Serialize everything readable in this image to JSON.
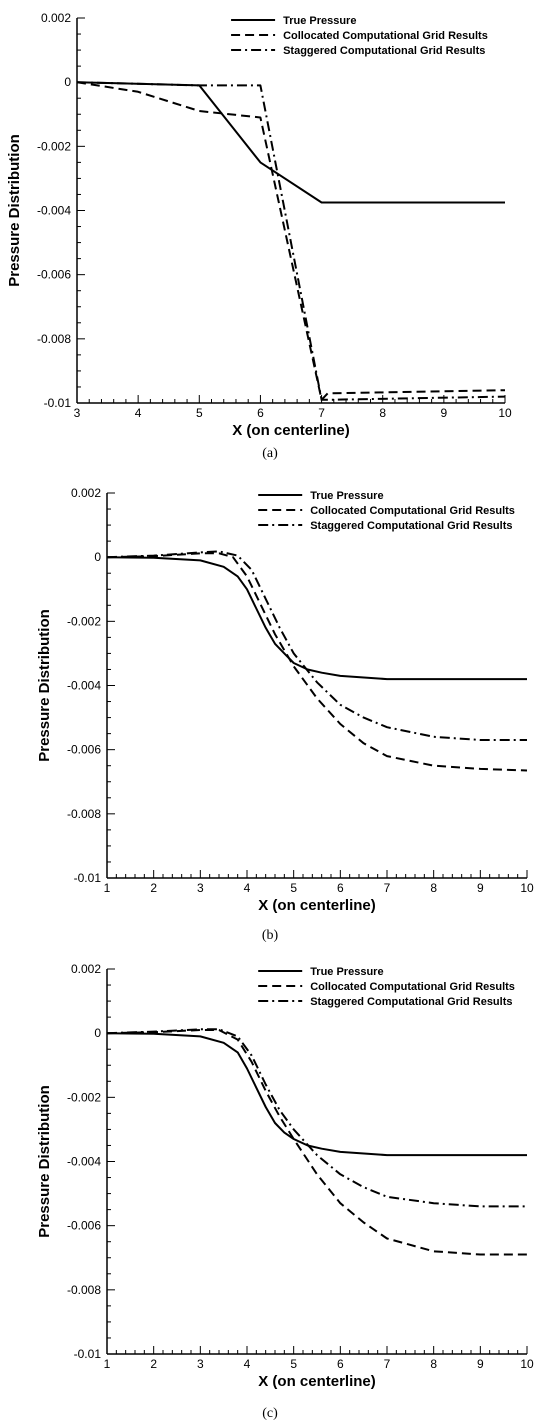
{
  "chart_data": [
    {
      "type": "line",
      "caption": "(a)",
      "xlabel": "X (on centerline)",
      "ylabel": "Pressure Distribution",
      "xlim": [
        3,
        10
      ],
      "ylim": [
        -0.01,
        0.002
      ],
      "xticks": [
        "3",
        "4",
        "5",
        "6",
        "7",
        "8",
        "9",
        "10"
      ],
      "yticks": [
        "0.002",
        "0",
        "-0.002",
        "-0.004",
        "-0.006",
        "-0.008",
        "-0.01"
      ],
      "grid": false,
      "legend": "top-right",
      "series": [
        {
          "name": "True Pressure",
          "style": "solid",
          "x": [
            3,
            5,
            6,
            7,
            10
          ],
          "y": [
            0,
            -0.0001,
            -0.0025,
            -0.00375,
            -0.00375
          ]
        },
        {
          "name": "Collocated Computational Grid Results",
          "style": "dashed",
          "x": [
            3,
            4,
            5,
            6,
            7,
            7.1,
            10
          ],
          "y": [
            0,
            -0.0003,
            -0.0009,
            -0.0011,
            -0.0099,
            -0.0097,
            -0.0096
          ]
        },
        {
          "name": "Staggered Computational Grid Results",
          "style": "dashdot",
          "x": [
            3,
            5,
            6,
            7,
            7.1,
            10
          ],
          "y": [
            0,
            -0.0001,
            -0.0001,
            -0.0099,
            -0.0099,
            -0.0098
          ]
        }
      ]
    },
    {
      "type": "line",
      "caption": "(b)",
      "xlabel": "X (on centerline)",
      "ylabel": "Pressure Distribution",
      "xlim": [
        1,
        10
      ],
      "ylim": [
        -0.01,
        0.002
      ],
      "xticks": [
        "1",
        "2",
        "3",
        "4",
        "5",
        "6",
        "7",
        "8",
        "9",
        "10"
      ],
      "yticks": [
        "0.002",
        "0",
        "-0.002",
        "-0.004",
        "-0.006",
        "-0.008",
        "-0.01"
      ],
      "grid": false,
      "legend": "top-right",
      "series": [
        {
          "name": "True Pressure",
          "style": "solid",
          "x": [
            1,
            2,
            3,
            3.5,
            3.8,
            4,
            4.2,
            4.4,
            4.6,
            4.8,
            5,
            5.3,
            5.6,
            6,
            7,
            8,
            10
          ],
          "y": [
            0,
            -2e-05,
            -0.0001,
            -0.0003,
            -0.0006,
            -0.001,
            -0.0016,
            -0.0022,
            -0.0027,
            -0.003,
            -0.0033,
            -0.0035,
            -0.0036,
            -0.0037,
            -0.0038,
            -0.0038,
            -0.0038
          ]
        },
        {
          "name": "Collocated Computational Grid Results",
          "style": "dashed",
          "x": [
            1,
            2,
            3,
            3.4,
            3.7,
            4,
            4.3,
            4.6,
            5,
            5.5,
            6,
            6.5,
            7,
            8,
            9,
            10
          ],
          "y": [
            0,
            3e-05,
            0.00012,
            0.00012,
            0,
            -0.0006,
            -0.0015,
            -0.0024,
            -0.0034,
            -0.0044,
            -0.0052,
            -0.0058,
            -0.0062,
            -0.0065,
            -0.0066,
            -0.00665
          ]
        },
        {
          "name": "Staggered Computational Grid Results",
          "style": "dashdot",
          "x": [
            1,
            2,
            3,
            3.4,
            3.8,
            4.1,
            4.4,
            4.7,
            5,
            5.5,
            6,
            6.5,
            7,
            8,
            9,
            10
          ],
          "y": [
            0,
            5e-05,
            0.00015,
            0.00018,
            5e-05,
            -0.0004,
            -0.0013,
            -0.0022,
            -0.003,
            -0.0039,
            -0.0046,
            -0.005,
            -0.0053,
            -0.0056,
            -0.0057,
            -0.0057
          ]
        }
      ]
    },
    {
      "type": "line",
      "caption": "(c)",
      "xlabel": "X (on centerline)",
      "ylabel": "Pressure Distribution",
      "xlim": [
        1,
        10
      ],
      "ylim": [
        -0.01,
        0.002
      ],
      "xticks": [
        "1",
        "2",
        "3",
        "4",
        "5",
        "6",
        "7",
        "8",
        "9",
        "10"
      ],
      "yticks": [
        "0.002",
        "0",
        "-0.002",
        "-0.004",
        "-0.006",
        "-0.008",
        "-0.01"
      ],
      "grid": false,
      "legend": "top-right",
      "series": [
        {
          "name": "True Pressure",
          "style": "solid",
          "x": [
            1,
            2,
            3,
            3.5,
            3.8,
            4,
            4.2,
            4.4,
            4.6,
            4.8,
            5,
            5.3,
            5.6,
            6,
            7,
            8,
            10
          ],
          "y": [
            0,
            -2e-05,
            -0.0001,
            -0.0003,
            -0.0006,
            -0.0011,
            -0.0017,
            -0.0023,
            -0.0028,
            -0.0031,
            -0.0033,
            -0.0035,
            -0.0036,
            -0.0037,
            -0.0038,
            -0.0038,
            -0.0038
          ]
        },
        {
          "name": "Collocated Computational Grid Results",
          "style": "dashed",
          "x": [
            1,
            2,
            3,
            3.4,
            3.8,
            4.1,
            4.4,
            4.7,
            5,
            5.5,
            6,
            6.5,
            7,
            8,
            9,
            10
          ],
          "y": [
            0,
            3e-05,
            0.0001,
            0.0001,
            -0.0002,
            -0.0009,
            -0.0018,
            -0.0026,
            -0.0033,
            -0.0044,
            -0.0053,
            -0.0059,
            -0.0064,
            -0.0068,
            -0.0069,
            -0.0069
          ]
        },
        {
          "name": "Staggered Computational Grid Results",
          "style": "dashdot",
          "x": [
            1,
            2,
            3,
            3.4,
            3.8,
            4.1,
            4.4,
            4.7,
            5,
            5.5,
            6,
            6.5,
            7,
            8,
            9,
            10
          ],
          "y": [
            0,
            5e-05,
            0.00012,
            0.00012,
            -0.0001,
            -0.0007,
            -0.0016,
            -0.0024,
            -0.003,
            -0.0038,
            -0.0044,
            -0.0048,
            -0.0051,
            -0.0053,
            -0.0054,
            -0.0054
          ]
        }
      ]
    }
  ]
}
